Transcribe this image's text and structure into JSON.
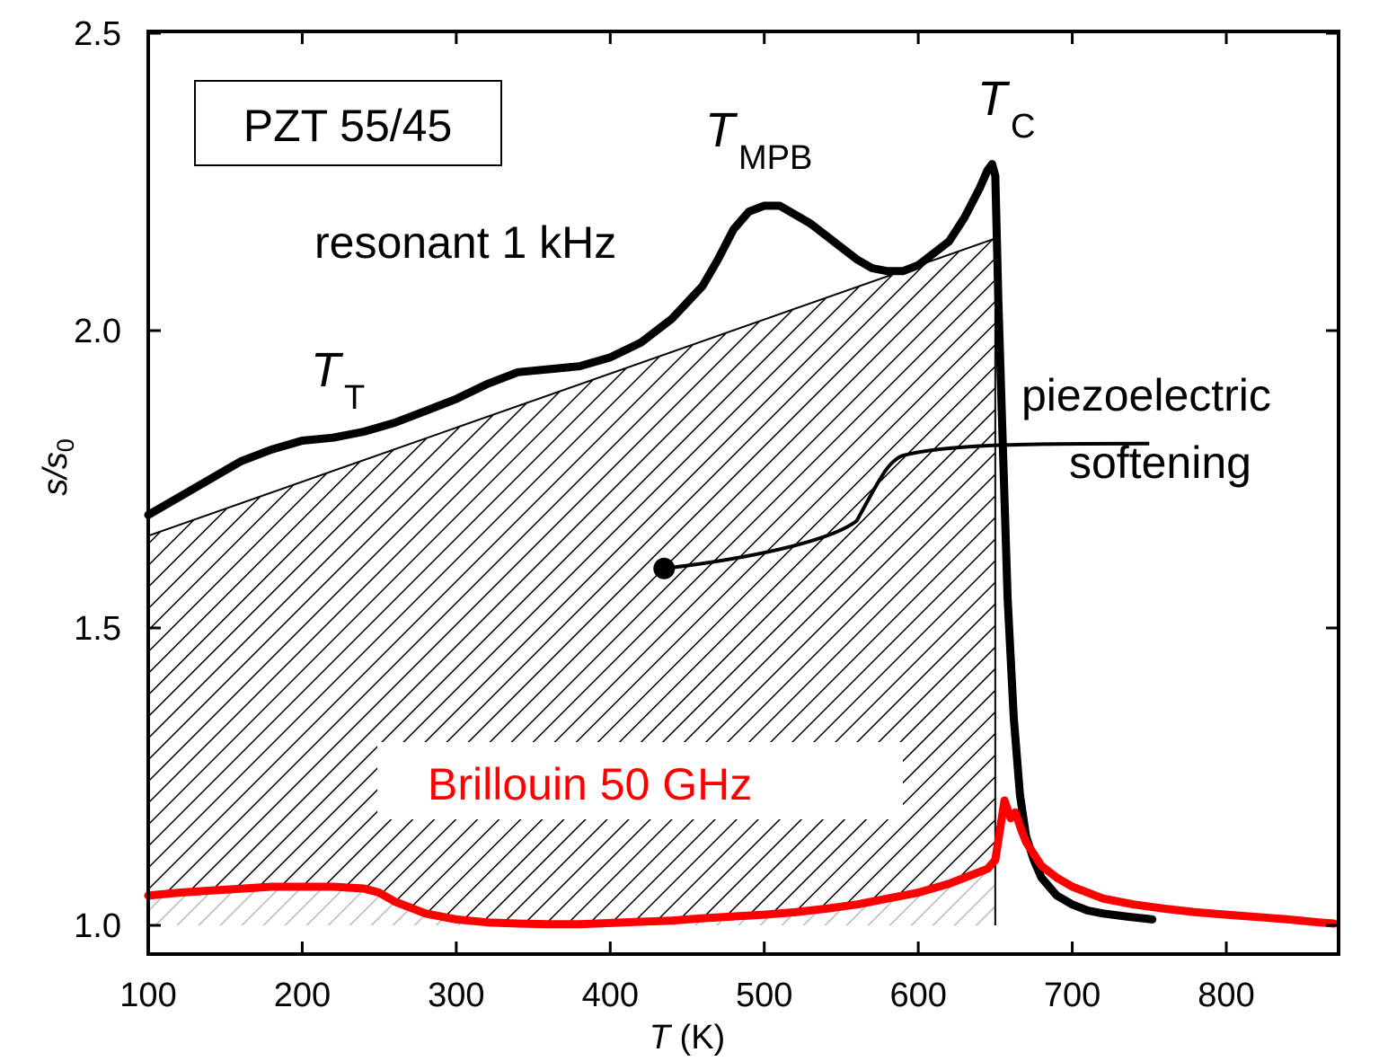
{
  "chart_data": {
    "type": "line",
    "xlabel_italic": "T",
    "xlabel_rest": " (K)",
    "ylabel_main": "s/s",
    "ylabel_sub": "0",
    "xlim": [
      100,
      870
    ],
    "ylim": [
      0.95,
      2.5
    ],
    "x_ticks": [
      100,
      200,
      300,
      400,
      500,
      600,
      700,
      800
    ],
    "x_tick_labels": [
      "100",
      "200",
      "300",
      "400",
      "500",
      "600",
      "700",
      "800"
    ],
    "y_ticks": [
      1.0,
      1.5,
      2.0,
      2.5
    ],
    "y_tick_labels": [
      "1.0",
      "1.5",
      "2.0",
      "2.5"
    ],
    "legend_box": "PZT 55/45",
    "series": [
      {
        "name": "resonant  1 kHz",
        "color": "#000000",
        "x": [
          100,
          120,
          140,
          160,
          180,
          200,
          220,
          240,
          260,
          280,
          300,
          320,
          340,
          360,
          380,
          400,
          420,
          440,
          460,
          470,
          480,
          490,
          500,
          510,
          520,
          530,
          540,
          550,
          560,
          570,
          580,
          590,
          600,
          610,
          620,
          630,
          640,
          645,
          648,
          650,
          652,
          655,
          658,
          662,
          666,
          670,
          675,
          680,
          690,
          700,
          710,
          720,
          735,
          752
        ],
        "values": [
          1.69,
          1.72,
          1.75,
          1.78,
          1.8,
          1.815,
          1.82,
          1.83,
          1.845,
          1.865,
          1.885,
          1.91,
          1.93,
          1.935,
          1.94,
          1.955,
          1.98,
          2.02,
          2.075,
          2.12,
          2.17,
          2.2,
          2.21,
          2.21,
          2.195,
          2.18,
          2.16,
          2.14,
          2.12,
          2.105,
          2.1,
          2.1,
          2.11,
          2.13,
          2.15,
          2.19,
          2.24,
          2.27,
          2.28,
          2.26,
          2.05,
          1.8,
          1.55,
          1.35,
          1.22,
          1.15,
          1.11,
          1.08,
          1.05,
          1.035,
          1.025,
          1.02,
          1.015,
          1.01
        ]
      },
      {
        "name": "Brillouin   50 GHz",
        "color": "#ff0000",
        "x": [
          100,
          120,
          150,
          180,
          200,
          220,
          240,
          250,
          260,
          280,
          300,
          320,
          340,
          360,
          380,
          400,
          420,
          440,
          460,
          480,
          500,
          520,
          540,
          560,
          580,
          600,
          620,
          630,
          640,
          645,
          650,
          653,
          656,
          660,
          663,
          667,
          670,
          675,
          680,
          690,
          700,
          710,
          720,
          740,
          760,
          780,
          800,
          820,
          840,
          860,
          870
        ],
        "values": [
          1.05,
          1.055,
          1.06,
          1.065,
          1.065,
          1.065,
          1.062,
          1.055,
          1.04,
          1.02,
          1.01,
          1.005,
          1.003,
          1.002,
          1.002,
          1.004,
          1.006,
          1.008,
          1.012,
          1.015,
          1.018,
          1.022,
          1.028,
          1.035,
          1.045,
          1.055,
          1.07,
          1.08,
          1.09,
          1.095,
          1.11,
          1.16,
          1.21,
          1.18,
          1.19,
          1.16,
          1.14,
          1.12,
          1.1,
          1.08,
          1.065,
          1.055,
          1.045,
          1.035,
          1.028,
          1.022,
          1.018,
          1.014,
          1.01,
          1.005,
          1.003
        ]
      }
    ],
    "baselines": {
      "upper_hatch_line_x": [
        100,
        650
      ],
      "upper_hatch_line_y": [
        1.655,
        2.155
      ],
      "tc_x": 650
    },
    "annotations": {
      "resonant": "resonant  1 kHz",
      "brillouin": "Brillouin   50 GHz",
      "tt_main": "T",
      "tt_sub": "T",
      "tmpb_main": "T",
      "tmpb_sub": "MPB",
      "tc_main": "T",
      "tc_sub": "C",
      "piezo_line1": "piezoelectric",
      "piezo_line2": "softening",
      "pointer_start": [
        435,
        1.6
      ],
      "pointer_end": [
        750,
        1.81
      ]
    }
  }
}
